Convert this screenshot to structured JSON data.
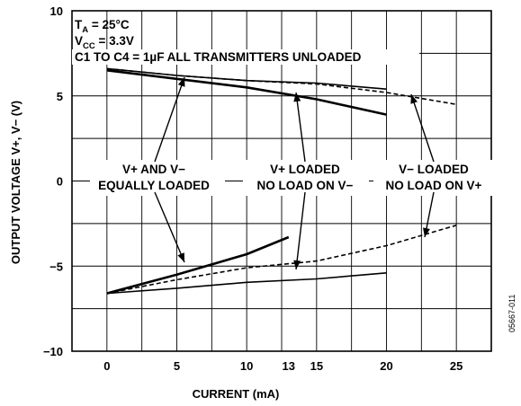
{
  "chart_data": {
    "type": "line",
    "xlabel": "CURRENT (mA)",
    "ylabel": "OUTPUT VOLTAGE V+, V−  (V)",
    "x_ticks": [
      "0",
      "5",
      "10",
      "13",
      "15",
      "20",
      "25"
    ],
    "x_tick_values": [
      0,
      5,
      10,
      13,
      15,
      20,
      25
    ],
    "y_ticks": [
      "10",
      "5",
      "0",
      "−5",
      "−10"
    ],
    "y_tick_values": [
      10,
      5,
      0,
      -5,
      -10
    ],
    "xlim": [
      -2.5,
      27.5
    ],
    "ylim": [
      -10,
      10
    ],
    "grid": true,
    "conditions": {
      "line1_main": "T",
      "line1_sub": "A",
      "line1_rest": " = 25°C",
      "line2_main": "V",
      "line2_sub": "CC",
      "line2_rest": " = 3.3V",
      "line3": "C1 TO C4 = 1µF ALL TRANSMITTERS UNLOADED"
    },
    "annotations": [
      {
        "lines": [
          "V+ AND V−",
          "EQUALLY LOADED"
        ]
      },
      {
        "lines": [
          "V+ LOADED",
          "NO LOAD ON V−"
        ]
      },
      {
        "lines": [
          "V− LOADED",
          "NO LOAD ON V+"
        ]
      }
    ],
    "figure_id": "05667-011",
    "series": [
      {
        "style": "solid-thin",
        "x": [
          0,
          5,
          10,
          15,
          20
        ],
        "y": [
          6.6,
          6.2,
          5.9,
          5.75,
          5.4
        ]
      },
      {
        "style": "solid-thick",
        "x": [
          0,
          5,
          10,
          15,
          20
        ],
        "y": [
          6.5,
          6.0,
          5.5,
          4.8,
          3.9
        ]
      },
      {
        "style": "dashed",
        "x": [
          0,
          5,
          10,
          15,
          20,
          25
        ],
        "y": [
          6.6,
          6.2,
          5.9,
          5.7,
          5.2,
          4.5
        ]
      },
      {
        "style": "solid-thick",
        "x": [
          0,
          5,
          10,
          13
        ],
        "y": [
          -6.6,
          -5.5,
          -4.3,
          -3.3
        ]
      },
      {
        "style": "dashed",
        "x": [
          0,
          5,
          10,
          15,
          20,
          25
        ],
        "y": [
          -6.6,
          -5.8,
          -5.1,
          -4.7,
          -3.8,
          -2.6
        ]
      },
      {
        "style": "solid-thin",
        "x": [
          0,
          5,
          10,
          15,
          20
        ],
        "y": [
          -6.6,
          -6.3,
          -5.95,
          -5.75,
          -5.4
        ]
      }
    ]
  }
}
